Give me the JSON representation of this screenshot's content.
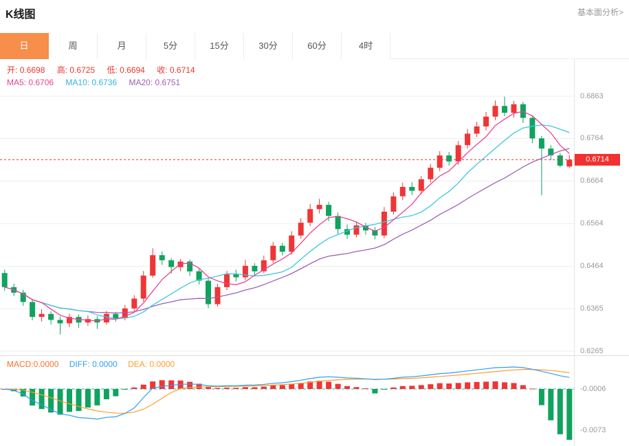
{
  "header": {
    "title": "K线图",
    "link_label": "基本面分析>"
  },
  "tabs": {
    "items": [
      {
        "label": "日",
        "active": true
      },
      {
        "label": "周",
        "active": false
      },
      {
        "label": "月",
        "active": false
      },
      {
        "label": "5分",
        "active": false
      },
      {
        "label": "15分",
        "active": false
      },
      {
        "label": "30分",
        "active": false
      },
      {
        "label": "60分",
        "active": false
      },
      {
        "label": "4时",
        "active": false
      }
    ]
  },
  "ohlc_legend": {
    "open_label": "开:",
    "open": "0.6698",
    "high_label": "高:",
    "high": "0.6725",
    "low_label": "低:",
    "low": "0.6694",
    "close_label": "收:",
    "close": "0.6714"
  },
  "ma_legend": {
    "ma5_label": "MA5:",
    "ma5": "0.6706",
    "ma10_label": "MA10:",
    "ma10": "0.6736",
    "ma20_label": "MA20:",
    "ma20": "0.6751"
  },
  "macd_legend": {
    "macd_label": "MACD:",
    "macd": "0.0000",
    "diff_label": "DIFF:",
    "diff": "0.0000",
    "dea_label": "DEA:",
    "dea": "0.0000"
  },
  "colors": {
    "up": "#ef3535",
    "down": "#0fa35e",
    "grid": "#ededed",
    "tab_active": "#f78e4a",
    "ma5": "#e84393",
    "ma10": "#3ec6e0",
    "ma20": "#a05eb5",
    "diff_line": "#2f9df4",
    "dea_line": "#ff9d2b",
    "baseline": "#2bb3a3",
    "price_line": "#f23030",
    "axis_text": "#999999"
  },
  "chart_data": {
    "type": "candlestick",
    "indicator": "MACD",
    "title": "K线图",
    "price_axis_ticks": [
      "0.6863",
      "0.6764",
      "0.6664",
      "0.6564",
      "0.6464",
      "0.6365",
      "0.6265"
    ],
    "y_range": [
      0.6255,
      0.695
    ],
    "price_line": {
      "value": "0.6714"
    },
    "ma_periods": [
      5,
      10,
      20
    ],
    "candles": [
      [
        0.6448,
        0.6456,
        0.6406,
        0.6415
      ],
      [
        0.6415,
        0.6423,
        0.6394,
        0.6402
      ],
      [
        0.6402,
        0.6409,
        0.6371,
        0.638
      ],
      [
        0.638,
        0.6386,
        0.6337,
        0.6345
      ],
      [
        0.6345,
        0.6363,
        0.6334,
        0.6352
      ],
      [
        0.6352,
        0.6358,
        0.6327,
        0.6338
      ],
      [
        0.6338,
        0.6346,
        0.6304,
        0.633
      ],
      [
        0.633,
        0.6353,
        0.6321,
        0.6345
      ],
      [
        0.6345,
        0.6351,
        0.6319,
        0.6332
      ],
      [
        0.6332,
        0.6349,
        0.6324,
        0.634
      ],
      [
        0.634,
        0.6347,
        0.6317,
        0.6332
      ],
      [
        0.6332,
        0.6359,
        0.6327,
        0.6352
      ],
      [
        0.6352,
        0.6357,
        0.6334,
        0.6342
      ],
      [
        0.6342,
        0.6373,
        0.6337,
        0.6365
      ],
      [
        0.6365,
        0.6396,
        0.6359,
        0.6388
      ],
      [
        0.6388,
        0.6453,
        0.6381,
        0.6442
      ],
      [
        0.6442,
        0.6506,
        0.6437,
        0.649
      ],
      [
        0.649,
        0.6499,
        0.6467,
        0.6478
      ],
      [
        0.6478,
        0.6483,
        0.6447,
        0.6462
      ],
      [
        0.6462,
        0.6481,
        0.6452,
        0.6475
      ],
      [
        0.6475,
        0.648,
        0.6441,
        0.6452
      ],
      [
        0.6452,
        0.6458,
        0.6421,
        0.643
      ],
      [
        0.643,
        0.6436,
        0.6366,
        0.6375
      ],
      [
        0.6375,
        0.6423,
        0.6369,
        0.6415
      ],
      [
        0.6415,
        0.6453,
        0.6408,
        0.6445
      ],
      [
        0.6445,
        0.6456,
        0.6428,
        0.6438
      ],
      [
        0.6438,
        0.6479,
        0.6431,
        0.6465
      ],
      [
        0.6465,
        0.6471,
        0.6441,
        0.6452
      ],
      [
        0.6452,
        0.6489,
        0.6447,
        0.6478
      ],
      [
        0.6478,
        0.6521,
        0.6471,
        0.6512
      ],
      [
        0.6512,
        0.6519,
        0.6489,
        0.6498
      ],
      [
        0.6498,
        0.6546,
        0.6491,
        0.6536
      ],
      [
        0.6536,
        0.6577,
        0.6529,
        0.6566
      ],
      [
        0.6566,
        0.661,
        0.6558,
        0.6598
      ],
      [
        0.6598,
        0.6622,
        0.6588,
        0.6608
      ],
      [
        0.6608,
        0.6615,
        0.657,
        0.6582
      ],
      [
        0.6582,
        0.659,
        0.654,
        0.6551
      ],
      [
        0.6551,
        0.6562,
        0.6528,
        0.6538
      ],
      [
        0.6538,
        0.6568,
        0.6532,
        0.656
      ],
      [
        0.656,
        0.6566,
        0.6538,
        0.6548
      ],
      [
        0.6548,
        0.6556,
        0.6527,
        0.6536
      ],
      [
        0.6536,
        0.6603,
        0.653,
        0.6592
      ],
      [
        0.6592,
        0.6638,
        0.6585,
        0.6628
      ],
      [
        0.6628,
        0.666,
        0.6619,
        0.665
      ],
      [
        0.665,
        0.6661,
        0.6631,
        0.6641
      ],
      [
        0.6641,
        0.6676,
        0.6633,
        0.6668
      ],
      [
        0.6668,
        0.6704,
        0.666,
        0.6695
      ],
      [
        0.6695,
        0.6734,
        0.6687,
        0.6724
      ],
      [
        0.6724,
        0.6732,
        0.67,
        0.671
      ],
      [
        0.671,
        0.6758,
        0.6702,
        0.6748
      ],
      [
        0.6748,
        0.6786,
        0.674,
        0.6775
      ],
      [
        0.6775,
        0.6803,
        0.6767,
        0.6792
      ],
      [
        0.6792,
        0.6826,
        0.6783,
        0.6815
      ],
      [
        0.6815,
        0.6853,
        0.6807,
        0.684
      ],
      [
        0.684,
        0.6862,
        0.6816,
        0.6824
      ],
      [
        0.6824,
        0.6852,
        0.6813,
        0.6844
      ],
      [
        0.6844,
        0.685,
        0.68,
        0.6812
      ],
      [
        0.6812,
        0.6818,
        0.6753,
        0.6764
      ],
      [
        0.6764,
        0.677,
        0.663,
        0.674
      ],
      [
        0.674,
        0.6748,
        0.6713,
        0.6724
      ],
      [
        0.6724,
        0.673,
        0.6696,
        0.67
      ],
      [
        0.6698,
        0.6725,
        0.6694,
        0.6714
      ]
    ],
    "macd": {
      "axis_ticks": [
        "-0.0006",
        "-0.0073"
      ],
      "tick_positions": [
        48,
        108
      ]
    }
  }
}
